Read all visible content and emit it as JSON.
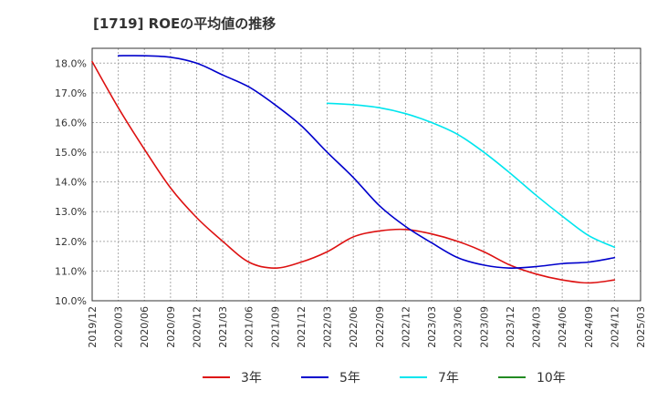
{
  "chart_data": {
    "type": "line",
    "title": "[1719]  ROEの平均値の推移",
    "xlabel": "",
    "ylabel": "",
    "ylim": [
      10.0,
      18.5
    ],
    "grid": true,
    "legend_position": "bottom",
    "x": [
      "2019/12",
      "2020/03",
      "2020/06",
      "2020/09",
      "2020/12",
      "2021/03",
      "2021/06",
      "2021/09",
      "2021/12",
      "2022/03",
      "2022/06",
      "2022/09",
      "2022/12",
      "2023/03",
      "2023/06",
      "2023/09",
      "2023/12",
      "2024/03",
      "2024/06",
      "2024/09",
      "2024/12",
      "2025/03"
    ],
    "y_ticks": [
      {
        "value": 10.0,
        "label": "10.0%"
      },
      {
        "value": 11.0,
        "label": "11.0%"
      },
      {
        "value": 12.0,
        "label": "12.0%"
      },
      {
        "value": 13.0,
        "label": "13.0%"
      },
      {
        "value": 14.0,
        "label": "14.0%"
      },
      {
        "value": 15.0,
        "label": "15.0%"
      },
      {
        "value": 16.0,
        "label": "16.0%"
      },
      {
        "value": 17.0,
        "label": "17.0%"
      },
      {
        "value": 18.0,
        "label": "18.0%"
      }
    ],
    "series": [
      {
        "name": "3年",
        "color": "#dd1111",
        "values": [
          18.05,
          16.5,
          15.1,
          13.8,
          12.8,
          12.0,
          11.3,
          11.1,
          11.3,
          11.65,
          12.15,
          12.35,
          12.4,
          12.25,
          12.0,
          11.65,
          11.2,
          10.9,
          10.7,
          10.6,
          10.7,
          null
        ]
      },
      {
        "name": "5年",
        "color": "#0000cc",
        "values": [
          null,
          18.25,
          18.25,
          18.2,
          18.0,
          17.6,
          17.2,
          16.6,
          15.9,
          15.0,
          14.15,
          13.2,
          12.5,
          11.95,
          11.45,
          11.2,
          11.1,
          11.15,
          11.25,
          11.3,
          11.45,
          null
        ]
      },
      {
        "name": "7年",
        "color": "#00e5ee",
        "values": [
          null,
          null,
          null,
          null,
          null,
          null,
          null,
          null,
          null,
          16.65,
          16.6,
          16.5,
          16.3,
          16.0,
          15.6,
          15.0,
          14.3,
          13.55,
          12.85,
          12.2,
          11.8,
          null
        ]
      },
      {
        "name": "10年",
        "color": "#228b22",
        "values": [
          null,
          null,
          null,
          null,
          null,
          null,
          null,
          null,
          null,
          null,
          null,
          null,
          null,
          null,
          null,
          null,
          null,
          null,
          null,
          null,
          null,
          null
        ]
      }
    ]
  }
}
